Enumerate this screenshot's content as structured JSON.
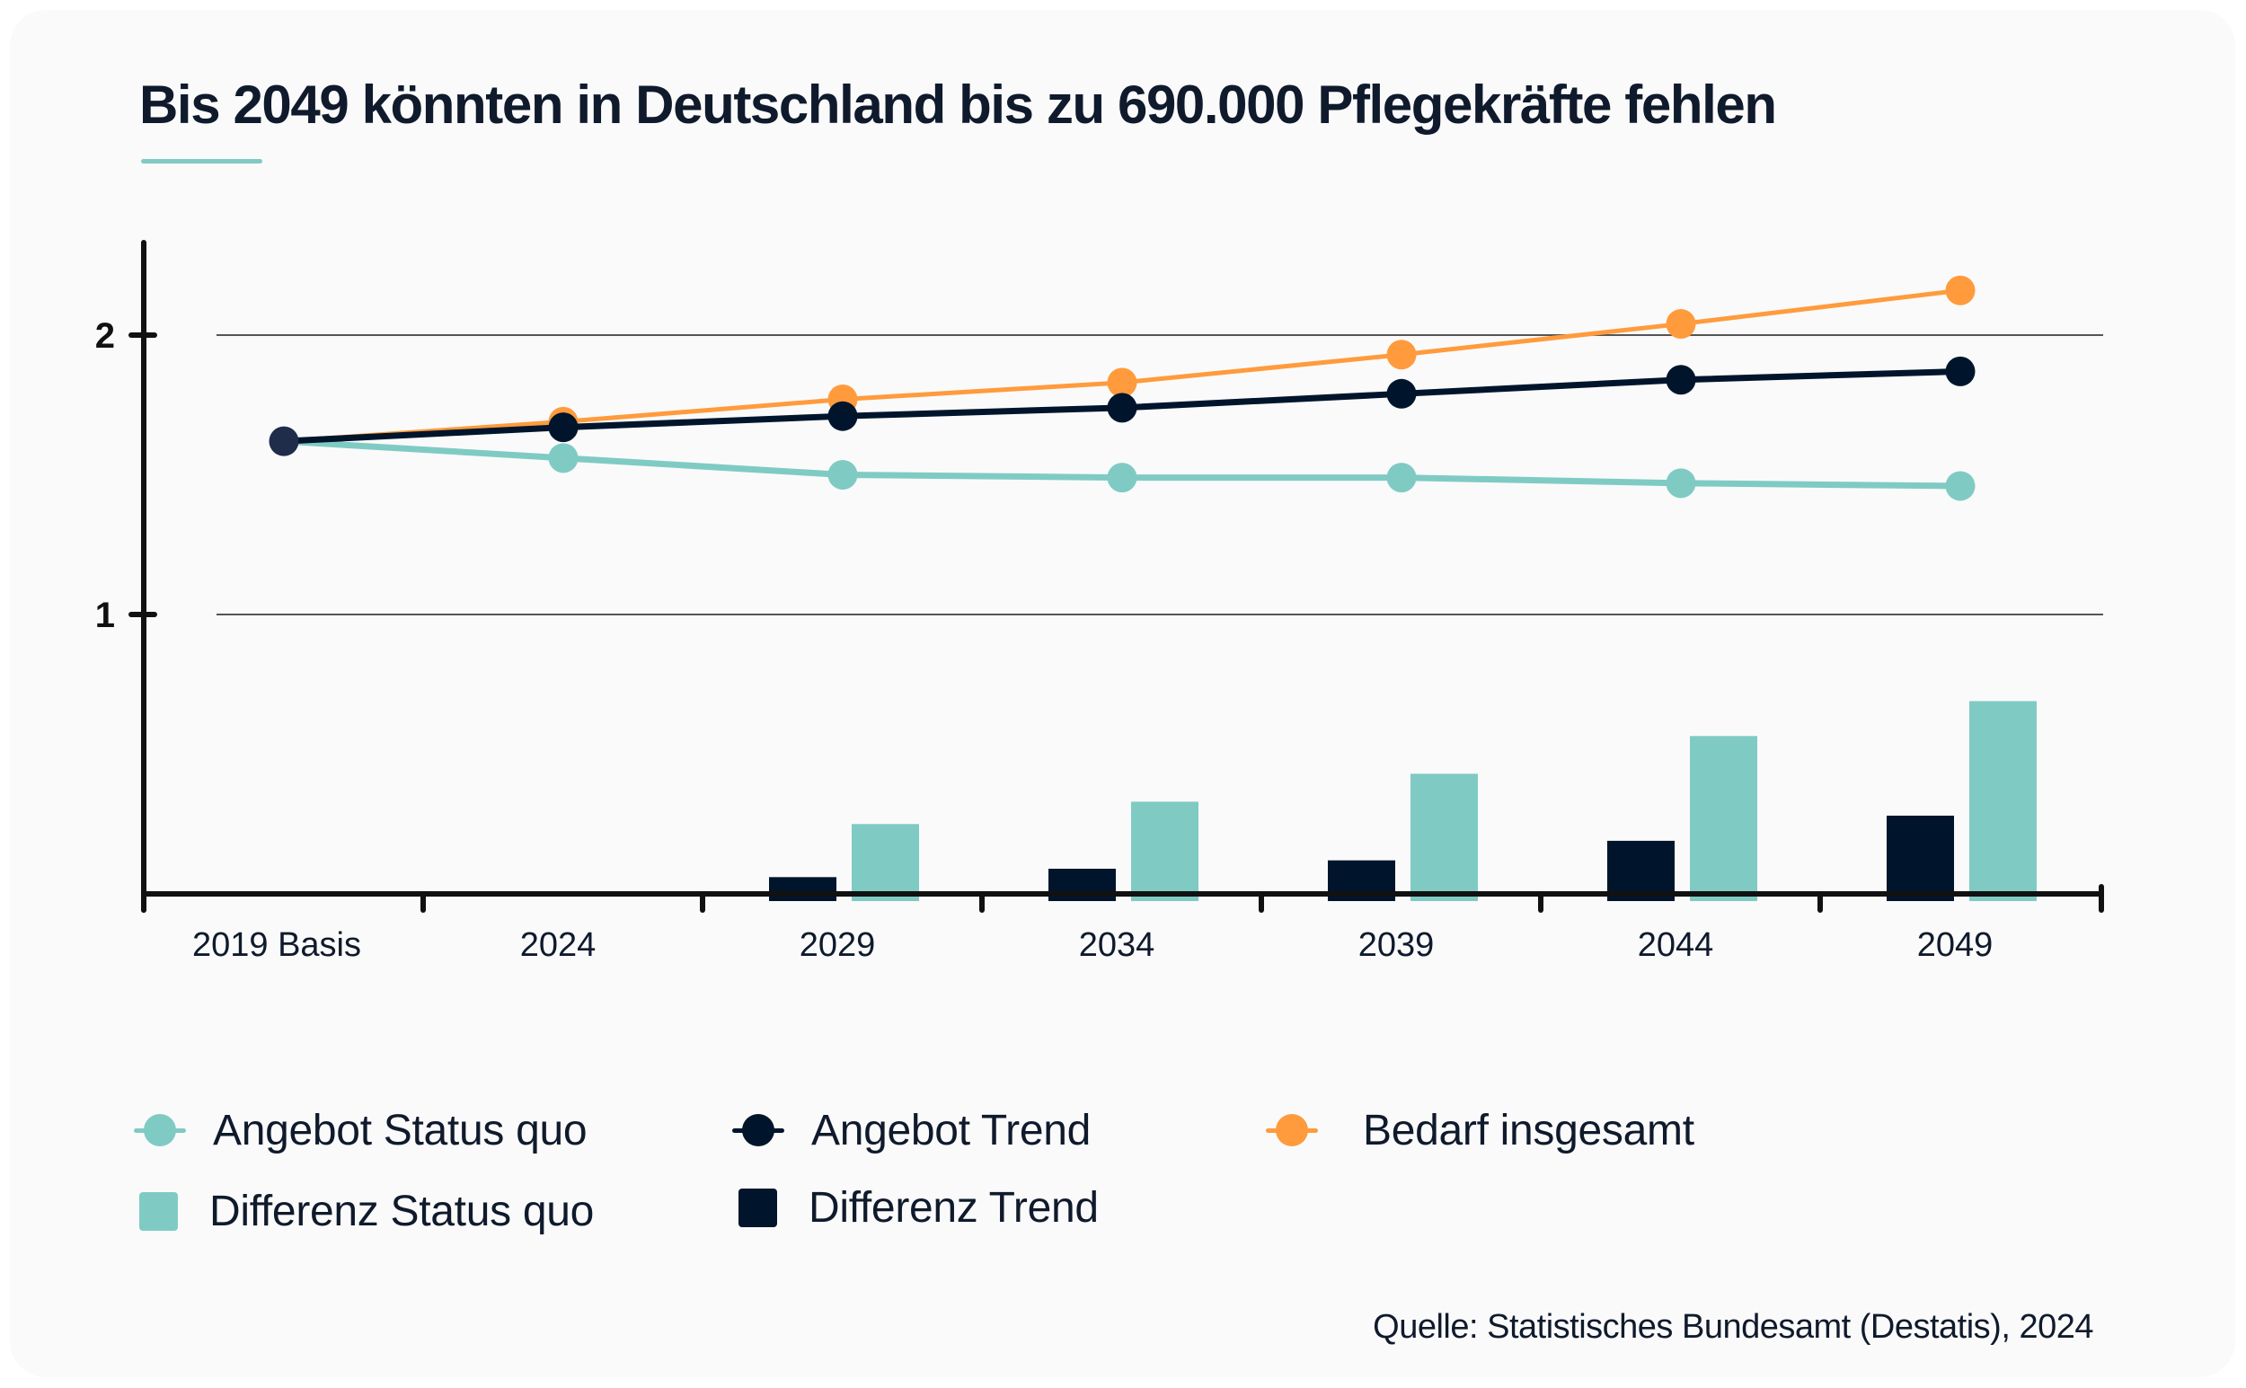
{
  "title": "Bis 2049 könnten in Deutschland bis zu 690.000 Pflegekräfte fehlen",
  "source": "Quelle: Statistisches Bundesamt (Destatis), 2024",
  "colors": {
    "teal": "#7fcbc4",
    "navy": "#00152b",
    "orange": "#ff9b3d",
    "basis_marker": "#1f2c4a",
    "axis": "#111111",
    "grid": "#555555",
    "text": "#0f1a2c"
  },
  "legend": [
    {
      "label": "Angebot Status quo",
      "type": "line-marker",
      "color_key": "teal"
    },
    {
      "label": "Angebot Trend",
      "type": "line-marker",
      "color_key": "navy"
    },
    {
      "label": "Bedarf insgesamt",
      "type": "line-marker",
      "color_key": "orange"
    },
    {
      "label": "Differenz Status quo",
      "type": "square",
      "color_key": "teal"
    },
    {
      "label": "Differenz Trend",
      "type": "square",
      "color_key": "navy"
    }
  ],
  "chart_data": {
    "type": "line+bar",
    "title": "Bis 2049 könnten in Deutschland bis zu 690.000 Pflegekräfte fehlen",
    "xlabel": "",
    "ylabel": "",
    "categories": [
      "2019 Basis",
      "2024",
      "2029",
      "2034",
      "2039",
      "2044",
      "2049"
    ],
    "yticks": [
      1,
      2
    ],
    "ytick_labels": [
      "1",
      "2"
    ],
    "ylim": [
      0,
      2.35
    ],
    "grid": true,
    "legend_position": "bottom",
    "series": [
      {
        "name": "Angebot Status quo",
        "type": "line",
        "color_key": "teal",
        "values": [
          1.62,
          1.56,
          1.5,
          1.49,
          1.49,
          1.47,
          1.46
        ]
      },
      {
        "name": "Angebot Trend",
        "type": "line",
        "color_key": "navy",
        "values": [
          1.62,
          1.67,
          1.71,
          1.74,
          1.79,
          1.84,
          1.87
        ]
      },
      {
        "name": "Bedarf insgesamt",
        "type": "line",
        "color_key": "orange",
        "values": [
          1.62,
          1.69,
          1.77,
          1.83,
          1.93,
          2.04,
          2.16
        ]
      },
      {
        "name": "Differenz Trend",
        "type": "bar",
        "color_key": "navy",
        "values": [
          0,
          0,
          0.06,
          0.09,
          0.12,
          0.19,
          0.28
        ]
      },
      {
        "name": "Differenz Status quo",
        "type": "bar",
        "color_key": "teal",
        "values": [
          0,
          0,
          0.25,
          0.33,
          0.43,
          0.565,
          0.69
        ]
      }
    ]
  }
}
